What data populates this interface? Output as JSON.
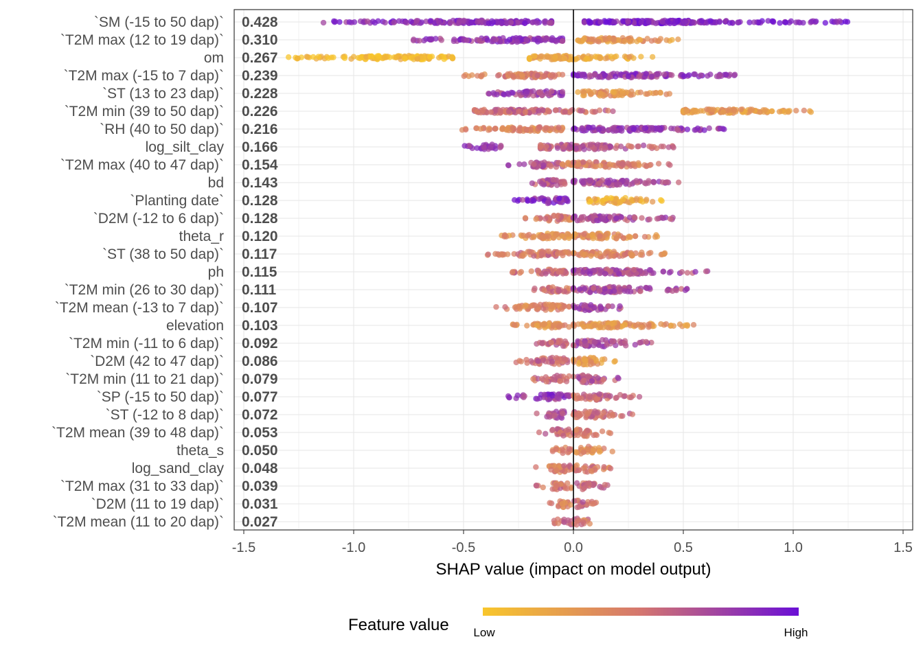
{
  "chart_data": {
    "type": "scatter",
    "subtype": "shap-beeswarm",
    "xlabel": "SHAP value (impact on model output)",
    "xlim": [
      -1.5,
      1.5
    ],
    "xticks": [
      -1.5,
      -1.0,
      -0.5,
      0.0,
      0.5,
      1.0,
      1.5
    ],
    "xtick_labels": [
      "-1.5",
      "-1.0",
      "-0.5",
      "0.0",
      "0.5",
      "1.0",
      "1.5"
    ],
    "legend": {
      "title": "Feature value",
      "low_label": "Low",
      "high_label": "High",
      "position": "bottom"
    },
    "colors": {
      "low": "#F8C62C",
      "mid": "#D4766F",
      "high": "#6A0FD6",
      "zero_line": "#000000",
      "grid": "#E6E6E6"
    },
    "features": [
      {
        "name": "`SM  (-15 to 50 dap)`",
        "importance": "0.428",
        "neg_min": -1.15,
        "neg_max": -0.1,
        "pos_min": 0.05,
        "pos_max": 1.26,
        "neg_low_high": 0.85,
        "pos_low_high": 0.9
      },
      {
        "name": "`T2M max  (12 to 19 dap)`",
        "importance": "0.310",
        "neg_min": -0.73,
        "neg_max": -0.05,
        "pos_min": 0.02,
        "pos_max": 0.48,
        "neg_low_high": 0.8,
        "pos_low_high": 0.3
      },
      {
        "name": "om",
        "importance": "0.267",
        "neg_min": -1.3,
        "neg_max": -0.55,
        "pos_min": -0.2,
        "pos_max": 0.36,
        "neg_low_high": 0.05,
        "pos_low_high": 0.2
      },
      {
        "name": "`T2M max  (-15 to 7 dap)`",
        "importance": "0.239",
        "neg_min": -0.5,
        "neg_max": -0.05,
        "pos_min": 0.0,
        "pos_max": 0.74,
        "neg_low_high": 0.45,
        "pos_low_high": 0.8
      },
      {
        "name": "`ST  (13 to 23 dap)`",
        "importance": "0.228",
        "neg_min": -0.4,
        "neg_max": -0.05,
        "pos_min": 0.02,
        "pos_max": 0.45,
        "neg_low_high": 0.75,
        "pos_low_high": 0.3
      },
      {
        "name": "`T2M min  (39 to 50 dap)`",
        "importance": "0.226",
        "neg_min": -0.45,
        "neg_max": 0.2,
        "pos_min": 0.5,
        "pos_max": 1.1,
        "neg_low_high": 0.55,
        "pos_low_high": 0.3
      },
      {
        "name": "`RH  (40 to 50 dap)`",
        "importance": "0.216",
        "neg_min": -0.52,
        "neg_max": -0.05,
        "pos_min": 0.0,
        "pos_max": 0.69,
        "neg_low_high": 0.4,
        "pos_low_high": 0.8
      },
      {
        "name": "log_silt_clay",
        "importance": "0.166",
        "neg_min": -0.5,
        "neg_max": -0.33,
        "pos_min": -0.15,
        "pos_max": 0.49,
        "neg_low_high": 0.8,
        "pos_low_high": 0.6
      },
      {
        "name": "`T2M max  (40 to 47 dap)`",
        "importance": "0.154",
        "neg_min": -0.3,
        "neg_max": -0.05,
        "pos_min": -0.05,
        "pos_max": 0.45,
        "neg_low_high": 0.65,
        "pos_low_high": 0.45
      },
      {
        "name": "bd",
        "importance": "0.143",
        "neg_min": -0.25,
        "neg_max": -0.02,
        "pos_min": 0.0,
        "pos_max": 0.5,
        "neg_low_high": 0.65,
        "pos_low_high": 0.7
      },
      {
        "name": "`Planting date`",
        "importance": "0.128",
        "neg_min": -0.28,
        "neg_max": -0.02,
        "pos_min": 0.07,
        "pos_max": 0.42,
        "neg_low_high": 0.85,
        "pos_low_high": 0.15
      },
      {
        "name": "`D2M  (-12 to 6 dap)`",
        "importance": "0.128",
        "neg_min": -0.22,
        "neg_max": -0.01,
        "pos_min": 0.0,
        "pos_max": 0.47,
        "neg_low_high": 0.45,
        "pos_low_high": 0.7
      },
      {
        "name": "theta_r",
        "importance": "0.120",
        "neg_min": -0.33,
        "neg_max": -0.02,
        "pos_min": 0.0,
        "pos_max": 0.4,
        "neg_low_high": 0.35,
        "pos_low_high": 0.35
      },
      {
        "name": "`ST  (38 to 50 dap)`",
        "importance": "0.117",
        "neg_min": -0.4,
        "neg_max": -0.02,
        "pos_min": 0.0,
        "pos_max": 0.42,
        "neg_low_high": 0.5,
        "pos_low_high": 0.4
      },
      {
        "name": "ph",
        "importance": "0.115",
        "neg_min": -0.28,
        "neg_max": -0.02,
        "pos_min": 0.0,
        "pos_max": 0.61,
        "neg_low_high": 0.55,
        "pos_low_high": 0.7
      },
      {
        "name": "`T2M min  (26 to 30 dap)`",
        "importance": "0.111",
        "neg_min": -0.2,
        "neg_max": -0.02,
        "pos_min": 0.0,
        "pos_max": 0.52,
        "neg_low_high": 0.5,
        "pos_low_high": 0.7
      },
      {
        "name": "`T2M mean  (-13 to 7 dap)`",
        "importance": "0.107",
        "neg_min": -0.36,
        "neg_max": -0.02,
        "pos_min": 0.0,
        "pos_max": 0.26,
        "neg_low_high": 0.4,
        "pos_low_high": 0.7
      },
      {
        "name": "elevation",
        "importance": "0.103",
        "neg_min": -0.29,
        "neg_max": -0.02,
        "pos_min": 0.0,
        "pos_max": 0.55,
        "neg_low_high": 0.35,
        "pos_low_high": 0.3
      },
      {
        "name": "`T2M min  (-11 to 6 dap)`",
        "importance": "0.092",
        "neg_min": -0.17,
        "neg_max": -0.02,
        "pos_min": 0.0,
        "pos_max": 0.37,
        "neg_low_high": 0.55,
        "pos_low_high": 0.7
      },
      {
        "name": "`D2M  (42 to 47 dap)`",
        "importance": "0.086",
        "neg_min": -0.27,
        "neg_max": -0.02,
        "pos_min": 0.0,
        "pos_max": 0.21,
        "neg_low_high": 0.55,
        "pos_low_high": 0.3
      },
      {
        "name": "`T2M min  (11 to 21 dap)`",
        "importance": "0.079",
        "neg_min": -0.19,
        "neg_max": -0.02,
        "pos_min": 0.0,
        "pos_max": 0.22,
        "neg_low_high": 0.55,
        "pos_low_high": 0.65
      },
      {
        "name": "`SP  (-15 to 50 dap)`",
        "importance": "0.077",
        "neg_min": -0.3,
        "neg_max": -0.02,
        "pos_min": 0.0,
        "pos_max": 0.31,
        "neg_low_high": 0.8,
        "pos_low_high": 0.55
      },
      {
        "name": "`ST  (-12 to 8 dap)`",
        "importance": "0.072",
        "neg_min": -0.17,
        "neg_max": -0.02,
        "pos_min": 0.0,
        "pos_max": 0.28,
        "neg_low_high": 0.7,
        "pos_low_high": 0.55
      },
      {
        "name": "`T2M mean  (39 to 48 dap)`",
        "importance": "0.053",
        "neg_min": -0.16,
        "neg_max": -0.01,
        "pos_min": 0.0,
        "pos_max": 0.17,
        "neg_low_high": 0.55,
        "pos_low_high": 0.5
      },
      {
        "name": "theta_s",
        "importance": "0.050",
        "neg_min": -0.1,
        "neg_max": -0.01,
        "pos_min": 0.0,
        "pos_max": 0.18,
        "neg_low_high": 0.4,
        "pos_low_high": 0.35
      },
      {
        "name": "log_sand_clay",
        "importance": "0.048",
        "neg_min": -0.19,
        "neg_max": -0.01,
        "pos_min": 0.0,
        "pos_max": 0.17,
        "neg_low_high": 0.45,
        "pos_low_high": 0.45
      },
      {
        "name": "`T2M max  (31 to 33 dap)`",
        "importance": "0.039",
        "neg_min": -0.17,
        "neg_max": -0.01,
        "pos_min": 0.0,
        "pos_max": 0.16,
        "neg_low_high": 0.5,
        "pos_low_high": 0.55
      },
      {
        "name": "`D2M  (11 to 19 dap)`",
        "importance": "0.031",
        "neg_min": -0.12,
        "neg_max": -0.01,
        "pos_min": 0.0,
        "pos_max": 0.11,
        "neg_low_high": 0.4,
        "pos_low_high": 0.55
      },
      {
        "name": "`T2M mean  (11 to 20 dap)`",
        "importance": "0.027",
        "neg_min": -0.09,
        "neg_max": -0.01,
        "pos_min": 0.0,
        "pos_max": 0.09,
        "neg_low_high": 0.55,
        "pos_low_high": 0.5
      }
    ]
  }
}
